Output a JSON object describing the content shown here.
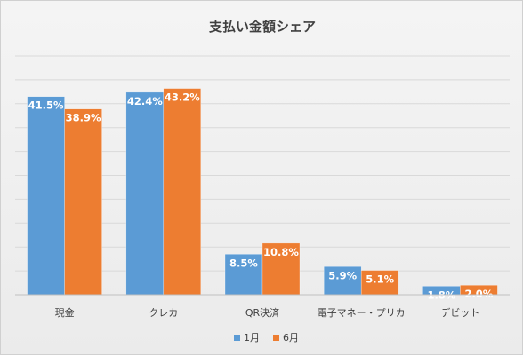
{
  "chart_data": {
    "type": "bar",
    "title": "支払い金額シェア",
    "categories": [
      "現金",
      "クレカ",
      "QR決済",
      "電子マネー・プリカ",
      "デビット"
    ],
    "series": [
      {
        "name": "1月",
        "values": [
          41.5,
          42.4,
          8.5,
          5.9,
          1.8
        ],
        "labels": [
          "41.5%",
          "42.4%",
          "8.5%",
          "5.9%",
          "1.8%"
        ]
      },
      {
        "name": "6月",
        "values": [
          38.9,
          43.2,
          10.8,
          5.1,
          2.0
        ],
        "labels": [
          "38.9%",
          "43.2%",
          "10.8%",
          "5.1%",
          "2.0%"
        ]
      }
    ],
    "xlabel": "",
    "ylabel": "",
    "ylim": [
      0,
      50
    ],
    "y_tick_labels_visible": false,
    "grid": true,
    "legend": "bottom",
    "colors": {
      "1月": "#5b9bd5",
      "6月": "#ed7d31"
    }
  }
}
